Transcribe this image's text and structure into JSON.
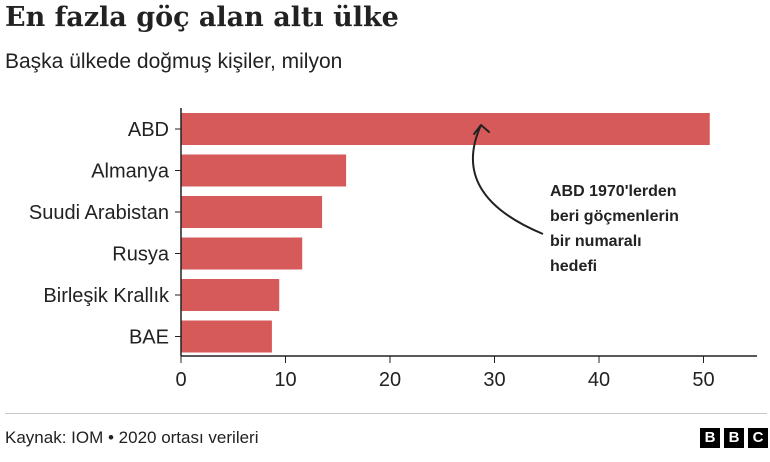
{
  "title": "En fazla göç alan altı ülke",
  "subtitle": "Başka ülkede doğmuş kişiler, milyon",
  "source": "Kaynak: IOM • 2020 ortası verileri",
  "brand": {
    "letters": [
      "B",
      "B",
      "C"
    ]
  },
  "colors": {
    "bar": "#d65a5a",
    "text": "#222222",
    "axis": "#222222"
  },
  "chart_data": {
    "type": "bar",
    "orientation": "horizontal",
    "categories": [
      "ABD",
      "Almanya",
      "Suudi Arabistan",
      "Rusya",
      "Birleşik Krallık",
      "BAE"
    ],
    "values": [
      50.6,
      15.8,
      13.5,
      11.6,
      9.4,
      8.7
    ],
    "xlim": [
      0,
      55
    ],
    "xticks": [
      0,
      10,
      20,
      30,
      40,
      50
    ],
    "title": "En fazla göç alan altı ülke",
    "subtitle": "Başka ülkede doğmuş kişiler, milyon",
    "xlabel": "",
    "ylabel": "",
    "grid": false,
    "annotation": {
      "lines": [
        "ABD 1970'lerden",
        "beri göçmenlerin",
        "bir numaralı",
        "hedefi"
      ],
      "target_category": "ABD",
      "target_value": 29
    }
  }
}
